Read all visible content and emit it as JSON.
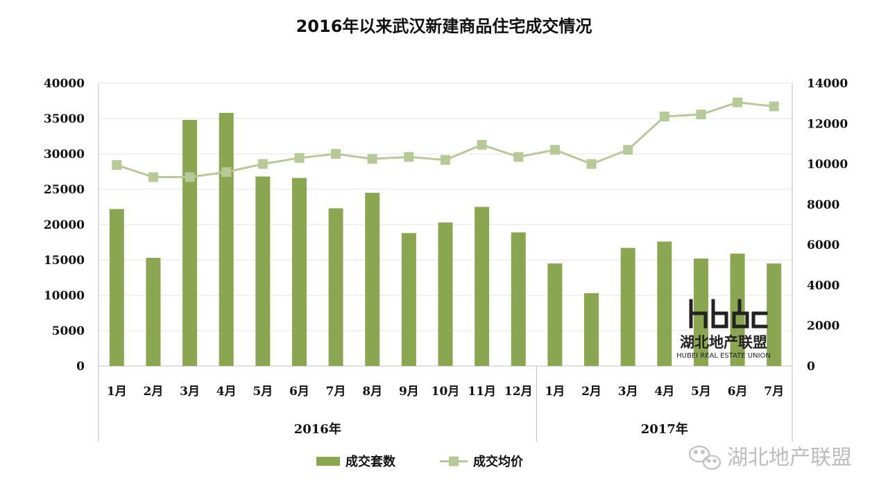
{
  "chart_data": {
    "type": "bar+line",
    "title": "2016年以来武汉新建商品住宅成交情况",
    "categories": [
      "1月",
      "2月",
      "3月",
      "4月",
      "5月",
      "6月",
      "7月",
      "8月",
      "9月",
      "10月",
      "11月",
      "12月",
      "1月",
      "2月",
      "3月",
      "4月",
      "5月",
      "6月",
      "7月"
    ],
    "groups": [
      {
        "label": "2016年",
        "count": 12
      },
      {
        "label": "2017年",
        "count": 7
      }
    ],
    "series": [
      {
        "name": "成交套数",
        "type": "bar",
        "axis": "left",
        "color": "#8aa650",
        "values": [
          22200,
          15300,
          34800,
          35800,
          26800,
          26600,
          22300,
          24500,
          18800,
          20300,
          22500,
          18900,
          14500,
          10300,
          16700,
          17600,
          15200,
          15900,
          14500
        ]
      },
      {
        "name": "成交均价",
        "type": "line",
        "axis": "right",
        "color": "#b6c996",
        "values": [
          9950,
          9350,
          9350,
          9600,
          10000,
          10300,
          10500,
          10250,
          10350,
          10200,
          10950,
          10350,
          10700,
          10000,
          10700,
          12350,
          12450,
          13050,
          12850
        ]
      }
    ],
    "y_left": {
      "min": 0,
      "max": 40000,
      "ticks": [
        "0",
        "5000",
        "10000",
        "15000",
        "20000",
        "25000",
        "30000",
        "35000",
        "40000"
      ]
    },
    "y_right": {
      "min": 0,
      "max": 14000,
      "ticks": [
        "0",
        "2000",
        "4000",
        "6000",
        "8000",
        "10000",
        "12000",
        "14000"
      ]
    },
    "grid": true,
    "legend_position": "bottom"
  },
  "watermarks": {
    "logo_name": "湖北地产联盟",
    "logo_sub": "HUBEI REAL ESTATE UNION",
    "wechat": "湖北地产联盟"
  }
}
